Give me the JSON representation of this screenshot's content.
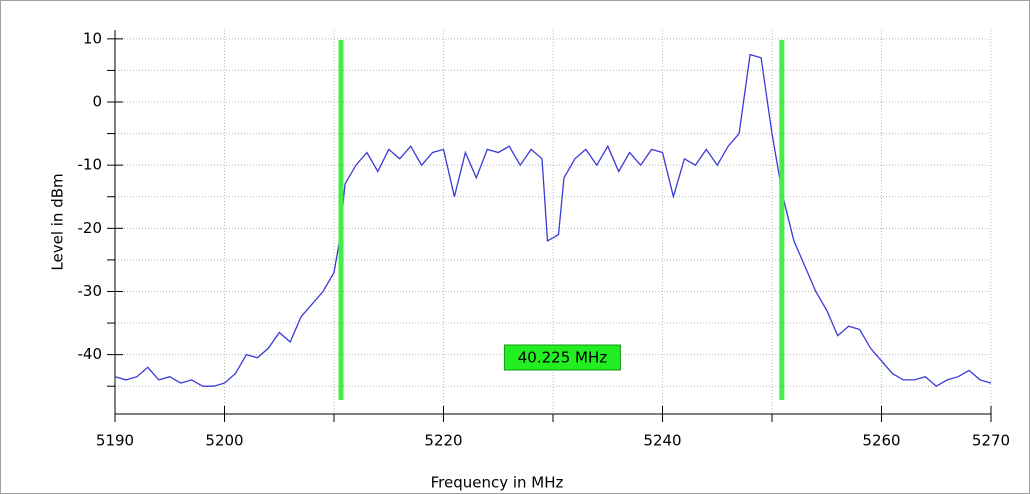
{
  "chart_data": {
    "type": "line",
    "xlabel": "Frequency in MHz",
    "ylabel": "Level in dBm",
    "x": [
      5190,
      5191,
      5192,
      5193,
      5194,
      5195,
      5196,
      5197,
      5198,
      5199,
      5200,
      5201,
      5202,
      5203,
      5204,
      5205,
      5206,
      5207,
      5208,
      5209,
      5210,
      5210.5,
      5211,
      5212,
      5213,
      5214,
      5215,
      5216,
      5217,
      5218,
      5219,
      5220,
      5221,
      5222,
      5223,
      5224,
      5225,
      5226,
      5227,
      5228,
      5229,
      5229.5,
      5230,
      5230.5,
      5231,
      5232,
      5233,
      5234,
      5235,
      5236,
      5237,
      5238,
      5239,
      5240,
      5241,
      5242,
      5243,
      5244,
      5245,
      5246,
      5247,
      5248,
      5249,
      5250,
      5251,
      5252,
      5253,
      5254,
      5255,
      5256,
      5257,
      5258,
      5259,
      5260,
      5261,
      5262,
      5263,
      5264,
      5265,
      5266,
      5267,
      5268,
      5269,
      5270
    ],
    "series": [
      {
        "color": "#3a3ad8",
        "values": [
          -43.5,
          -44,
          -43.5,
          -42,
          -44,
          -43.5,
          -44.5,
          -44,
          -45,
          -45,
          -44.5,
          -43,
          -40,
          -40.5,
          -39,
          -36.5,
          -38,
          -34,
          -32,
          -30,
          -27,
          -22,
          -13,
          -10,
          -8,
          -11,
          -7.5,
          -9,
          -7,
          -10,
          -8,
          -7.5,
          -15,
          -8,
          -12,
          -7.5,
          -8,
          -7,
          -10,
          -7.5,
          -9,
          -22,
          -21.5,
          -21,
          -12,
          -9,
          -7.5,
          -10,
          -7,
          -11,
          -8,
          -10,
          -7.5,
          -8,
          -15,
          -9,
          -10,
          -7.5,
          -10,
          -7,
          -5,
          7.5,
          7,
          -5,
          -15,
          -22,
          -26,
          -30,
          -33,
          -37,
          -35.5,
          -36,
          -39,
          -41,
          -43,
          -44,
          -44,
          -43.5,
          -45,
          -44,
          -43.5,
          -42.5,
          -44,
          -44.5
        ]
      }
    ],
    "xlim": [
      5190,
      5270
    ],
    "ylim": [
      -49.4,
      11.4
    ],
    "xticks": [
      5190,
      5200,
      5220,
      5240,
      5260,
      5270
    ],
    "minor_xticks": [
      5210,
      5230,
      5250
    ],
    "yticks": [
      10,
      0,
      -10,
      -20,
      -30,
      -40
    ],
    "minor_yticks": [
      5,
      -5,
      -15,
      -25,
      -35,
      -45
    ],
    "grid": true,
    "markers": {
      "color": "#44ee44",
      "x": [
        5210.64,
        5250.9
      ]
    },
    "annotation": "40.225 MHz"
  }
}
